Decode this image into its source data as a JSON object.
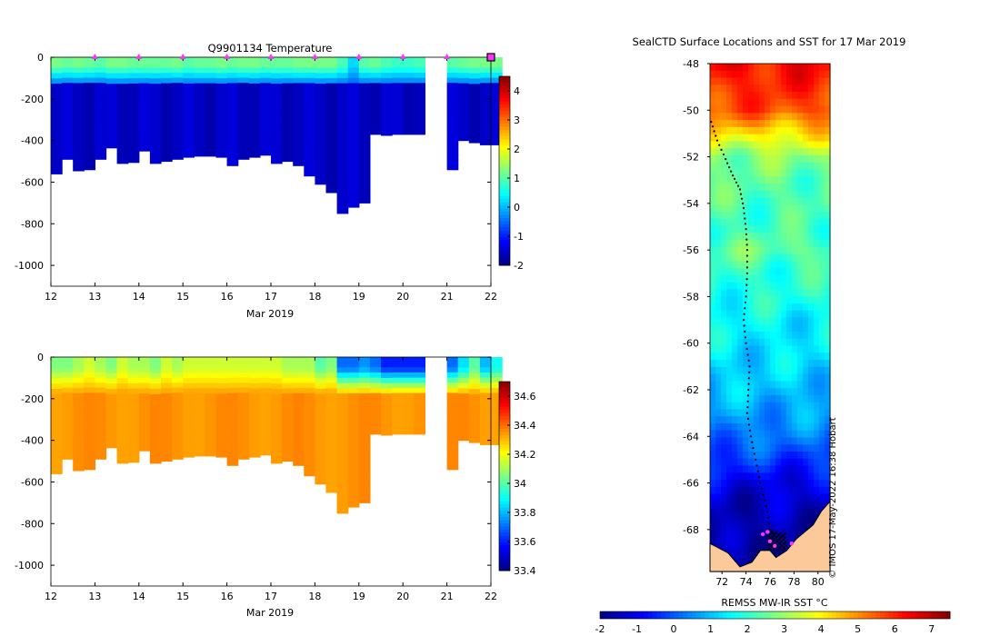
{
  "chart_data": [
    {
      "type": "heatmap",
      "title": "Q9901134  Temperature",
      "xlabel": "Mar 2019",
      "ylabel": "",
      "x_ticks": [
        12,
        13,
        14,
        15,
        16,
        17,
        18,
        19,
        20,
        21,
        22
      ],
      "xlim": [
        12,
        22
      ],
      "y_ticks": [
        0,
        -200,
        -400,
        -600,
        -800,
        -1000
      ],
      "ylim": [
        -1100,
        0
      ],
      "colorbar": {
        "ticks": [
          4,
          3,
          2,
          1,
          0,
          -1,
          -2
        ],
        "range": [
          -2,
          4.5
        ]
      },
      "profiles": {
        "day": [
          12.0,
          12.25,
          12.5,
          12.75,
          13.0,
          13.25,
          13.5,
          13.75,
          14.0,
          14.25,
          14.5,
          14.75,
          15.0,
          15.25,
          15.5,
          15.75,
          16.0,
          16.25,
          16.5,
          16.75,
          17.0,
          17.25,
          17.5,
          17.75,
          18.0,
          18.25,
          18.5,
          18.75,
          19.0,
          19.25,
          19.5,
          19.75,
          20.0,
          20.25,
          21.0,
          21.25,
          21.5,
          21.75,
          22.0
        ],
        "max_depth": [
          -560,
          -490,
          -545,
          -540,
          -490,
          -435,
          -510,
          -505,
          -450,
          -510,
          -500,
          -490,
          -480,
          -475,
          -475,
          -480,
          -520,
          -490,
          -480,
          -470,
          -510,
          -500,
          -520,
          -570,
          -610,
          -650,
          -750,
          -720,
          -700,
          -370,
          -375,
          -370,
          -370,
          -370,
          -540,
          -400,
          -410,
          -420,
          -420
        ],
        "surface_temp": [
          1.2,
          1.1,
          1.2,
          1.1,
          1.0,
          1.2,
          1.2,
          1.1,
          1.1,
          1.1,
          1.1,
          1.2,
          1.0,
          1.1,
          1.1,
          1.2,
          1.1,
          1.2,
          1.2,
          1.1,
          1.1,
          1.1,
          1.2,
          1.2,
          1.2,
          1.2,
          0.9,
          0.2,
          1.0,
          1.1,
          0.9,
          0.8,
          0.8,
          0.9,
          1.0,
          1.1,
          1.2,
          1.2,
          1.2
        ]
      },
      "data_gap": [
        20.3,
        20.9
      ],
      "surface_markers": [
        13,
        14,
        15,
        16,
        17,
        18,
        19,
        20,
        21,
        22
      ]
    },
    {
      "type": "heatmap",
      "title": "",
      "xlabel": "Mar 2019",
      "ylabel": "",
      "x_ticks": [
        12,
        13,
        14,
        15,
        16,
        17,
        18,
        19,
        20,
        21,
        22
      ],
      "xlim": [
        12,
        22
      ],
      "y_ticks": [
        0,
        -200,
        -400,
        -600,
        -800,
        -1000
      ],
      "ylim": [
        -1100,
        0
      ],
      "colorbar": {
        "ticks": [
          34.6,
          34.4,
          34.2,
          34,
          33.8,
          33.6,
          33.4
        ],
        "range": [
          33.4,
          34.7
        ]
      },
      "surface_salinity": [
        34.05,
        34.05,
        34.1,
        34.15,
        34.1,
        34.05,
        34.15,
        34.1,
        34.1,
        34.05,
        34.15,
        34.1,
        34.15,
        34.15,
        34.15,
        34.15,
        34.15,
        34.15,
        34.15,
        34.15,
        34.15,
        34.1,
        34.1,
        34.1,
        34.0,
        34.05,
        33.7,
        33.7,
        33.75,
        33.7,
        33.6,
        33.6,
        33.6,
        33.6,
        33.7,
        33.85,
        34.0,
        33.8,
        33.9
      ],
      "deep_salinity": 34.35
    },
    {
      "type": "heatmap",
      "title": "SealCTD Surface Locations and SST for 17 Mar 2019",
      "xlabel": "REMSS MW-IR SST °C",
      "x_ticks": [
        72,
        74,
        76,
        78,
        80
      ],
      "xlim": [
        71,
        81
      ],
      "y_ticks": [
        -48,
        -50,
        -52,
        -54,
        -56,
        -58,
        -60,
        -62,
        -64,
        -66,
        -68
      ],
      "ylim": [
        -69.8,
        -48
      ],
      "colorbar": {
        "ticks": [
          -2,
          -1,
          0,
          1,
          2,
          3,
          4,
          5,
          6,
          7
        ],
        "range": [
          -2,
          7.5
        ]
      },
      "sst_by_latitude": [
        [
          -48,
          6.3
        ],
        [
          -50,
          5.6
        ],
        [
          -51,
          4.2
        ],
        [
          -52,
          2.8
        ],
        [
          -53,
          2.4
        ],
        [
          -54,
          2.3
        ],
        [
          -55,
          2.1
        ],
        [
          -56,
          2.5
        ],
        [
          -57,
          2.0
        ],
        [
          -58,
          1.8
        ],
        [
          -59,
          1.5
        ],
        [
          -60,
          1.4
        ],
        [
          -61,
          1.2
        ],
        [
          -62,
          1.0
        ],
        [
          -63,
          0.7
        ],
        [
          -64,
          0.3
        ],
        [
          -65,
          -0.3
        ],
        [
          -66,
          -1.0
        ],
        [
          -67,
          -1.4
        ],
        [
          -68,
          -1.6
        ],
        [
          -69,
          -1.7
        ]
      ],
      "track": [
        [
          71.1,
          -50.5
        ],
        [
          71.6,
          -51.3
        ],
        [
          72.3,
          -52.1
        ],
        [
          72.9,
          -52.8
        ],
        [
          73.5,
          -53.4
        ],
        [
          73.8,
          -54.2
        ],
        [
          74.0,
          -55.1
        ],
        [
          74.1,
          -56.0
        ],
        [
          74.1,
          -57.0
        ],
        [
          74.0,
          -58.0
        ],
        [
          73.8,
          -59.0
        ],
        [
          74.0,
          -60.0
        ],
        [
          74.3,
          -61.0
        ],
        [
          74.2,
          -62.0
        ],
        [
          74.1,
          -63.0
        ],
        [
          74.4,
          -64.0
        ],
        [
          74.8,
          -65.0
        ],
        [
          75.2,
          -66.0
        ],
        [
          75.7,
          -67.0
        ],
        [
          76.0,
          -68.0
        ],
        [
          76.5,
          -68.3
        ]
      ],
      "surface_locations": [
        [
          75.4,
          -68.2
        ],
        [
          75.8,
          -68.1
        ],
        [
          76.0,
          -68.5
        ],
        [
          76.4,
          -68.7
        ],
        [
          77.8,
          -68.6
        ]
      ],
      "watermark": "© IMOS 17-May-2022 16:38 Hobart"
    }
  ]
}
